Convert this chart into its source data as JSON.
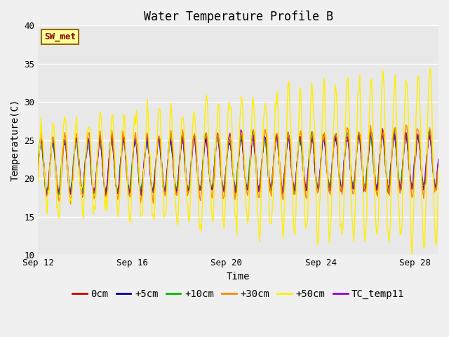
{
  "title": "Water Temperature Profile B",
  "xlabel": "Time",
  "ylabel": "Temperature(C)",
  "ylim": [
    10,
    40
  ],
  "xlim_days": [
    0,
    17
  ],
  "x_ticks_days": [
    0,
    4,
    8,
    12,
    16
  ],
  "x_tick_labels": [
    "Sep 12",
    "Sep 16",
    "Sep 20",
    "Sep 24",
    "Sep 28"
  ],
  "y_ticks": [
    10,
    15,
    20,
    25,
    30,
    35,
    40
  ],
  "series": [
    {
      "label": "0cm",
      "color": "#cc0000"
    },
    {
      "label": "+5cm",
      "color": "#000099"
    },
    {
      "label": "+10cm",
      "color": "#00bb00"
    },
    {
      "label": "+30cm",
      "color": "#ff8800"
    },
    {
      "label": "+50cm",
      "color": "#ffee00"
    },
    {
      "label": "TC_temp11",
      "color": "#9900cc"
    }
  ],
  "sw_met_label": "SW_met",
  "sw_met_fg": "#880000",
  "sw_met_bg": "#ffff99",
  "sw_met_border": "#996600",
  "plot_bg": "#e8e8e8",
  "fig_bg": "#f0f0f0",
  "grid_color": "#ffffff",
  "title_fontsize": 12,
  "axis_label_fontsize": 10,
  "tick_fontsize": 9,
  "legend_fontsize": 10,
  "line_width": 1.0,
  "font_family": "monospace"
}
